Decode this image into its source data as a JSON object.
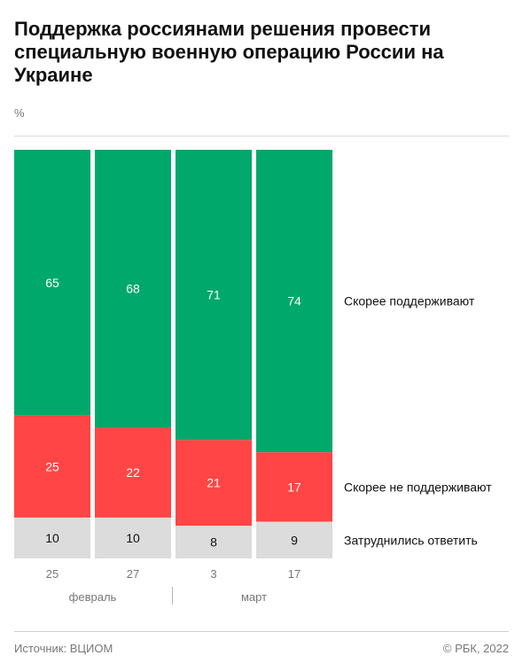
{
  "title": "Поддержка россиянами решения провести специальную военную операцию России на Украине",
  "unit": "%",
  "footer": {
    "source": "Источник: ВЦИОМ",
    "copyright": "© РБК, 2022"
  },
  "colors": {
    "support": "#00a86b",
    "not_support": "#ff4545",
    "undecided": "#dcdcdc"
  },
  "chart_data": {
    "type": "bar",
    "stacked": true,
    "normalized_to": 100,
    "categories": [
      "25",
      "27",
      "3",
      "17"
    ],
    "month_groups": [
      {
        "label": "февраль",
        "categories": [
          "25",
          "27"
        ]
      },
      {
        "label": "март",
        "categories": [
          "3",
          "17"
        ]
      }
    ],
    "series": [
      {
        "name": "Затруднились ответить",
        "values": [
          10,
          10,
          8,
          9
        ],
        "color": "#dcdcdc"
      },
      {
        "name": "Скорее не поддерживают",
        "values": [
          25,
          22,
          21,
          17
        ],
        "color": "#ff4545"
      },
      {
        "name": "Скорее поддерживают",
        "values": [
          65,
          68,
          71,
          74
        ],
        "color": "#00a86b"
      }
    ],
    "legend_position": "right, labels aligned with last bar's segments",
    "grid": false
  }
}
